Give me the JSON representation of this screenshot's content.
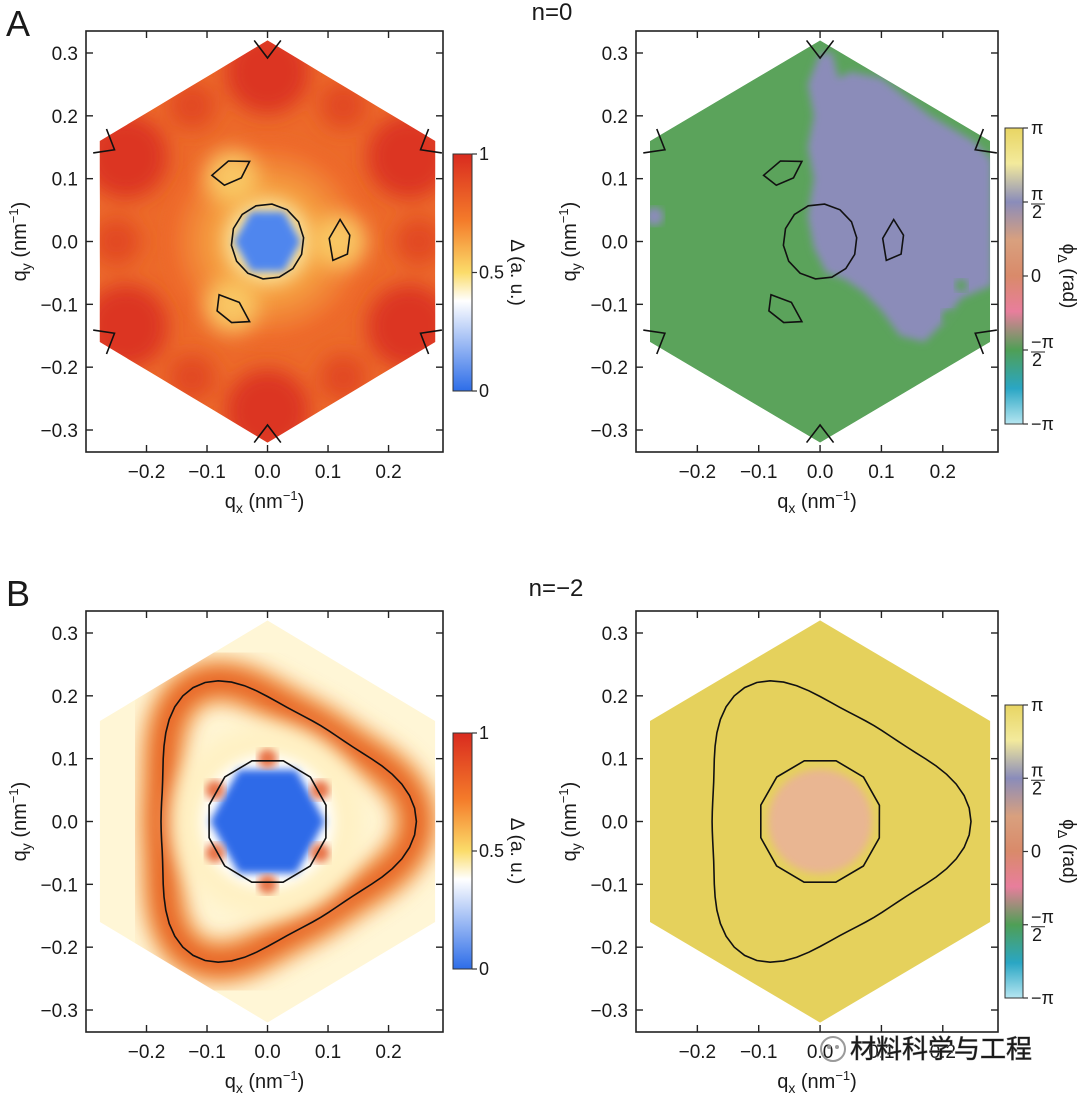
{
  "panels_meta": {
    "A": {
      "letter": "A",
      "title": "n=0"
    },
    "B": {
      "letter": "B",
      "title": "n=−2"
    }
  },
  "axis_labels": {
    "x_main": "q",
    "x_sub": "x",
    "x_unit": " (nm",
    "x_sup": "−1",
    "x_close": ")",
    "y_main": "q",
    "y_sub": "y",
    "y_unit": " (nm",
    "y_sup": "−1",
    "y_close": ")"
  },
  "colorbars": {
    "magnitude": {
      "label": "Δ (a. u.)",
      "ticks": [
        "1",
        "0.5",
        "0"
      ],
      "tick_values": [
        1,
        0.5,
        0
      ],
      "colors": [
        "#d92b1f",
        "#f47b2a",
        "#fbdc6a",
        "#ffffff",
        "#2d6de8"
      ]
    },
    "phase": {
      "label_main": "ϕ",
      "label_sub": "Δ",
      "label_unit": " (rad)",
      "ticks": [
        {
          "pos": 1.0,
          "lead": "",
          "num": "π",
          "den": ""
        },
        {
          "pos": 0.5,
          "lead": "",
          "num": "π",
          "den": "2"
        },
        {
          "pos": 0.0,
          "lead": "",
          "num": "0",
          "den": ""
        },
        {
          "pos": -0.5,
          "lead": "−",
          "num": "π",
          "den": "2"
        },
        {
          "pos": -1.0,
          "lead": "−",
          "num": "π",
          "den": ""
        }
      ],
      "colors": [
        "#e8d563",
        "#8a8cba",
        "#d9a07e",
        "#e87e9c",
        "#4f9f56",
        "#2aa6c4",
        "#b6e6f1"
      ]
    }
  },
  "watermark": "材料科学与工程",
  "colors": {
    "phase_green": "#5ba35b",
    "phase_lavender": "#8b8cb9",
    "phase_yellow": "#e5d15c",
    "phase_peach": "#e9b692"
  },
  "chart_data": [
    {
      "type": "heatmap",
      "panel": "A",
      "quantity": "magnitude",
      "xlabel": "qx (nm⁻¹)",
      "ylabel": "qy (nm⁻¹)",
      "xlim": [
        -0.3,
        0.29
      ],
      "ylim": [
        -0.335,
        0.335
      ],
      "xticks": [
        "−0.2",
        "−0.1",
        "0.0",
        "0.1",
        "0.2"
      ],
      "yticks": [
        "0.3",
        "0.2",
        "0.1",
        "0.0",
        "−0.1",
        "−0.2",
        "−0.3"
      ],
      "zlim": [
        0,
        1
      ],
      "features": {
        "hexagon_half_height": 0.32,
        "central_gap_radius": 0.055,
        "contours": [
          "circle r=0.06 at origin",
          "three small pockets near r=0.12",
          "six corner wedges"
        ]
      }
    },
    {
      "type": "heatmap",
      "panel": "A",
      "quantity": "phase",
      "xlim": [
        -0.3,
        0.29
      ],
      "ylim": [
        -0.335,
        0.335
      ],
      "xticks": [
        "−0.2",
        "−0.1",
        "0.0",
        "0.1",
        "0.2"
      ],
      "yticks": [
        "0.3",
        "0.2",
        "0.1",
        "0.0",
        "−0.1",
        "−0.2",
        "−0.3"
      ],
      "zlim": [
        "−π",
        "π"
      ],
      "features": {
        "regions": [
          "green (≈ −π/2) on left",
          "lavender (≈ π/2) on upper right"
        ]
      }
    },
    {
      "type": "heatmap",
      "panel": "B",
      "quantity": "magnitude",
      "xlim": [
        -0.3,
        0.29
      ],
      "ylim": [
        -0.335,
        0.335
      ],
      "xticks": [
        "−0.2",
        "−0.1",
        "0.0",
        "0.1",
        "0.2"
      ],
      "yticks": [
        "0.3",
        "0.2",
        "0.1",
        "0.0",
        "−0.1",
        "−0.2",
        "−0.3"
      ],
      "zlim": [
        0,
        1
      ],
      "features": {
        "central_gap_radius": 0.095,
        "trigonal_contour": "rounded triangle, max r≈0.25 along +x",
        "inner_contour": "dodecagon r≈0.1"
      }
    },
    {
      "type": "heatmap",
      "panel": "B",
      "quantity": "phase",
      "xlim": [
        -0.3,
        0.29
      ],
      "ylim": [
        -0.335,
        0.335
      ],
      "xticks": [
        "−0.2",
        "−0.1",
        "0.0",
        "0.1",
        "0.2"
      ],
      "yticks": [
        "0.3",
        "0.2",
        "0.1",
        "0.0",
        "−0.1",
        "−0.2",
        "−0.3"
      ],
      "zlim": [
        "−π",
        "π"
      ],
      "features": {
        "regions": [
          "uniform yellow (≈ π)",
          "peach central disk (≈ 0 to π/4)"
        ]
      }
    }
  ]
}
